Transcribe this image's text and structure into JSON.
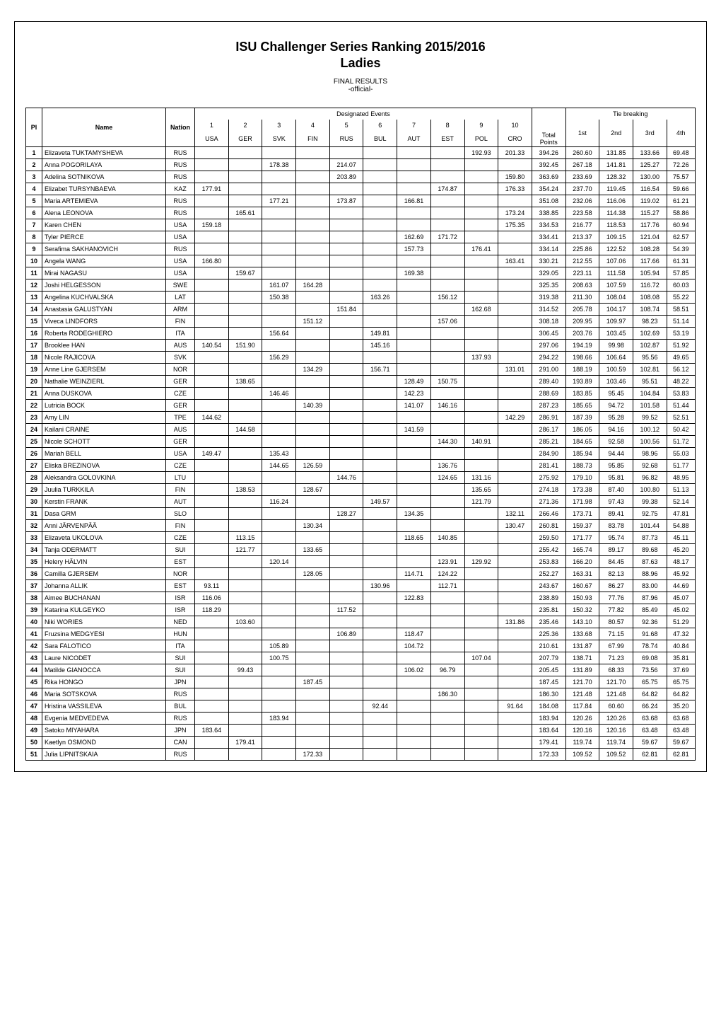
{
  "header": {
    "title": "ISU Challenger Series Ranking 2015/2016",
    "subtitle": "Ladies",
    "final_results": "FINAL RESULTS",
    "official": "-official-"
  },
  "table": {
    "group_designated": "Designated Events",
    "group_tie": "Tie breaking",
    "col_pl": "Pl",
    "col_name": "Name",
    "col_nation": "Nation",
    "events_nums": [
      "1",
      "2",
      "3",
      "4",
      "5",
      "6",
      "7",
      "8",
      "9",
      "10"
    ],
    "events_codes": [
      "USA",
      "GER",
      "SVK",
      "FIN",
      "RUS",
      "BUL",
      "AUT",
      "EST",
      "POL",
      "CRO"
    ],
    "col_total": "Total",
    "col_points": "Points",
    "tie_cols": [
      "1st",
      "2nd",
      "3rd",
      "4th"
    ]
  },
  "rows": [
    {
      "pl": "1",
      "name": "Elizaveta TUKTAMYSHEVA",
      "nation": "RUS",
      "e": [
        "",
        "",
        "",
        "",
        "",
        "",
        "",
        "",
        "192.93",
        "201.33"
      ],
      "total": "394.26",
      "tie": [
        "260.60",
        "131.85",
        "133.66",
        "69.48"
      ]
    },
    {
      "pl": "2",
      "name": "Anna POGORILAYA",
      "nation": "RUS",
      "e": [
        "",
        "",
        "178.38",
        "",
        "214.07",
        "",
        "",
        "",
        "",
        ""
      ],
      "total": "392.45",
      "tie": [
        "267.18",
        "141.81",
        "125.27",
        "72.26"
      ]
    },
    {
      "pl": "3",
      "name": "Adelina SOTNIKOVA",
      "nation": "RUS",
      "e": [
        "",
        "",
        "",
        "",
        "203.89",
        "",
        "",
        "",
        "",
        "159.80"
      ],
      "total": "363.69",
      "tie": [
        "233.69",
        "128.32",
        "130.00",
        "75.57"
      ]
    },
    {
      "pl": "4",
      "name": "Elizabet TURSYNBAEVA",
      "nation": "KAZ",
      "e": [
        "177.91",
        "",
        "",
        "",
        "",
        "",
        "",
        "174.87",
        "",
        "176.33"
      ],
      "total": "354.24",
      "tie": [
        "237.70",
        "119.45",
        "116.54",
        "59.66"
      ]
    },
    {
      "pl": "5",
      "name": "Maria ARTEMIEVA",
      "nation": "RUS",
      "e": [
        "",
        "",
        "177.21",
        "",
        "173.87",
        "",
        "166.81",
        "",
        "",
        ""
      ],
      "total": "351.08",
      "tie": [
        "232.06",
        "116.06",
        "119.02",
        "61.21"
      ]
    },
    {
      "pl": "6",
      "name": "Alena LEONOVA",
      "nation": "RUS",
      "e": [
        "",
        "165.61",
        "",
        "",
        "",
        "",
        "",
        "",
        "",
        "173.24"
      ],
      "total": "338.85",
      "tie": [
        "223.58",
        "114.38",
        "115.27",
        "58.86"
      ]
    },
    {
      "pl": "7",
      "name": "Karen CHEN",
      "nation": "USA",
      "e": [
        "159.18",
        "",
        "",
        "",
        "",
        "",
        "",
        "",
        "",
        "175.35"
      ],
      "total": "334.53",
      "tie": [
        "216.77",
        "118.53",
        "117.76",
        "60.94"
      ]
    },
    {
      "pl": "8",
      "name": "Tyler PIERCE",
      "nation": "USA",
      "e": [
        "",
        "",
        "",
        "",
        "",
        "",
        "162.69",
        "171.72",
        "",
        ""
      ],
      "total": "334.41",
      "tie": [
        "213.37",
        "109.15",
        "121.04",
        "62.57"
      ]
    },
    {
      "pl": "9",
      "name": "Serafima SAKHANOVICH",
      "nation": "RUS",
      "e": [
        "",
        "",
        "",
        "",
        "",
        "",
        "157.73",
        "",
        "176.41",
        ""
      ],
      "total": "334.14",
      "tie": [
        "225.86",
        "122.52",
        "108.28",
        "54.39"
      ]
    },
    {
      "pl": "10",
      "name": "Angela WANG",
      "nation": "USA",
      "e": [
        "166.80",
        "",
        "",
        "",
        "",
        "",
        "",
        "",
        "",
        "163.41"
      ],
      "total": "330.21",
      "tie": [
        "212.55",
        "107.06",
        "117.66",
        "61.31"
      ]
    },
    {
      "pl": "11",
      "name": "Mirai NAGASU",
      "nation": "USA",
      "e": [
        "",
        "159.67",
        "",
        "",
        "",
        "",
        "169.38",
        "",
        "",
        ""
      ],
      "total": "329.05",
      "tie": [
        "223.11",
        "111.58",
        "105.94",
        "57.85"
      ]
    },
    {
      "pl": "12",
      "name": "Joshi HELGESSON",
      "nation": "SWE",
      "e": [
        "",
        "",
        "161.07",
        "164.28",
        "",
        "",
        "",
        "",
        "",
        ""
      ],
      "total": "325.35",
      "tie": [
        "208.63",
        "107.59",
        "116.72",
        "60.03"
      ]
    },
    {
      "pl": "13",
      "name": "Angelina KUCHVALSKA",
      "nation": "LAT",
      "e": [
        "",
        "",
        "150.38",
        "",
        "",
        "163.26",
        "",
        "156.12",
        "",
        ""
      ],
      "total": "319.38",
      "tie": [
        "211.30",
        "108.04",
        "108.08",
        "55.22"
      ]
    },
    {
      "pl": "14",
      "name": "Anastasia GALUSTYAN",
      "nation": "ARM",
      "e": [
        "",
        "",
        "",
        "",
        "151.84",
        "",
        "",
        "",
        "162.68",
        ""
      ],
      "total": "314.52",
      "tie": [
        "205.78",
        "104.17",
        "108.74",
        "58.51"
      ]
    },
    {
      "pl": "15",
      "name": "Viveca LINDFORS",
      "nation": "FIN",
      "e": [
        "",
        "",
        "",
        "151.12",
        "",
        "",
        "",
        "157.06",
        "",
        ""
      ],
      "total": "308.18",
      "tie": [
        "209.95",
        "109.97",
        "98.23",
        "51.14"
      ]
    },
    {
      "pl": "16",
      "name": "Roberta RODEGHIERO",
      "nation": "ITA",
      "e": [
        "",
        "",
        "156.64",
        "",
        "",
        "149.81",
        "",
        "",
        "",
        ""
      ],
      "total": "306.45",
      "tie": [
        "203.76",
        "103.45",
        "102.69",
        "53.19"
      ]
    },
    {
      "pl": "17",
      "name": "Brooklee HAN",
      "nation": "AUS",
      "e": [
        "140.54",
        "151.90",
        "",
        "",
        "",
        "145.16",
        "",
        "",
        "",
        ""
      ],
      "total": "297.06",
      "tie": [
        "194.19",
        "99.98",
        "102.87",
        "51.92"
      ]
    },
    {
      "pl": "18",
      "name": "Nicole RAJICOVA",
      "nation": "SVK",
      "e": [
        "",
        "",
        "156.29",
        "",
        "",
        "",
        "",
        "",
        "137.93",
        ""
      ],
      "total": "294.22",
      "tie": [
        "198.66",
        "106.64",
        "95.56",
        "49.65"
      ]
    },
    {
      "pl": "19",
      "name": "Anne Line GJERSEM",
      "nation": "NOR",
      "e": [
        "",
        "",
        "",
        "134.29",
        "",
        "156.71",
        "",
        "",
        "",
        "131.01"
      ],
      "total": "291.00",
      "tie": [
        "188.19",
        "100.59",
        "102.81",
        "56.12"
      ]
    },
    {
      "pl": "20",
      "name": "Nathalie WEINZIERL",
      "nation": "GER",
      "e": [
        "",
        "138.65",
        "",
        "",
        "",
        "",
        "128.49",
        "150.75",
        "",
        ""
      ],
      "total": "289.40",
      "tie": [
        "193.89",
        "103.46",
        "95.51",
        "48.22"
      ]
    },
    {
      "pl": "21",
      "name": "Anna DUSKOVA",
      "nation": "CZE",
      "e": [
        "",
        "",
        "146.46",
        "",
        "",
        "",
        "142.23",
        "",
        "",
        ""
      ],
      "total": "288.69",
      "tie": [
        "183.85",
        "95.45",
        "104.84",
        "53.83"
      ]
    },
    {
      "pl": "22",
      "name": "Lutricia BOCK",
      "nation": "GER",
      "e": [
        "",
        "",
        "",
        "140.39",
        "",
        "",
        "141.07",
        "146.16",
        "",
        ""
      ],
      "total": "287.23",
      "tie": [
        "185.65",
        "94.72",
        "101.58",
        "51.44"
      ]
    },
    {
      "pl": "23",
      "name": "Amy LIN",
      "nation": "TPE",
      "e": [
        "144.62",
        "",
        "",
        "",
        "",
        "",
        "",
        "",
        "",
        "142.29"
      ],
      "total": "286.91",
      "tie": [
        "187.39",
        "95.28",
        "99.52",
        "52.51"
      ]
    },
    {
      "pl": "24",
      "name": "Kailani CRAINE",
      "nation": "AUS",
      "e": [
        "",
        "144.58",
        "",
        "",
        "",
        "",
        "141.59",
        "",
        "",
        ""
      ],
      "total": "286.17",
      "tie": [
        "186.05",
        "94.16",
        "100.12",
        "50.42"
      ]
    },
    {
      "pl": "25",
      "name": "Nicole SCHOTT",
      "nation": "GER",
      "e": [
        "",
        "",
        "",
        "",
        "",
        "",
        "",
        "144.30",
        "140.91",
        ""
      ],
      "total": "285.21",
      "tie": [
        "184.65",
        "92.58",
        "100.56",
        "51.72"
      ]
    },
    {
      "pl": "26",
      "name": "Mariah BELL",
      "nation": "USA",
      "e": [
        "149.47",
        "",
        "135.43",
        "",
        "",
        "",
        "",
        "",
        "",
        ""
      ],
      "total": "284.90",
      "tie": [
        "185.94",
        "94.44",
        "98.96",
        "55.03"
      ]
    },
    {
      "pl": "27",
      "name": "Eliska BREZINOVA",
      "nation": "CZE",
      "e": [
        "",
        "",
        "144.65",
        "126.59",
        "",
        "",
        "",
        "136.76",
        "",
        ""
      ],
      "total": "281.41",
      "tie": [
        "188.73",
        "95.85",
        "92.68",
        "51.77"
      ]
    },
    {
      "pl": "28",
      "name": "Aleksandra GOLOVKINA",
      "nation": "LTU",
      "e": [
        "",
        "",
        "",
        "",
        "144.76",
        "",
        "",
        "124.65",
        "131.16",
        ""
      ],
      "total": "275.92",
      "tie": [
        "179.10",
        "95.81",
        "96.82",
        "48.95"
      ]
    },
    {
      "pl": "29",
      "name": "Juulia TURKKILA",
      "nation": "FIN",
      "e": [
        "",
        "138.53",
        "",
        "128.67",
        "",
        "",
        "",
        "",
        "135.65",
        ""
      ],
      "total": "274.18",
      "tie": [
        "173.38",
        "87.40",
        "100.80",
        "51.13"
      ]
    },
    {
      "pl": "30",
      "name": "Kerstin FRANK",
      "nation": "AUT",
      "e": [
        "",
        "",
        "116.24",
        "",
        "",
        "149.57",
        "",
        "",
        "121.79",
        ""
      ],
      "total": "271.36",
      "tie": [
        "171.98",
        "97.43",
        "99.38",
        "52.14"
      ]
    },
    {
      "pl": "31",
      "name": "Dasa GRM",
      "nation": "SLO",
      "e": [
        "",
        "",
        "",
        "",
        "128.27",
        "",
        "134.35",
        "",
        "",
        "132.11"
      ],
      "total": "266.46",
      "tie": [
        "173.71",
        "89.41",
        "92.75",
        "47.81"
      ]
    },
    {
      "pl": "32",
      "name": "Anni JÄRVENPÄÄ",
      "nation": "FIN",
      "e": [
        "",
        "",
        "",
        "130.34",
        "",
        "",
        "",
        "",
        "",
        "130.47"
      ],
      "total": "260.81",
      "tie": [
        "159.37",
        "83.78",
        "101.44",
        "54.88"
      ]
    },
    {
      "pl": "33",
      "name": "Elizaveta UKOLOVA",
      "nation": "CZE",
      "e": [
        "",
        "113.15",
        "",
        "",
        "",
        "",
        "118.65",
        "140.85",
        "",
        ""
      ],
      "total": "259.50",
      "tie": [
        "171.77",
        "95.74",
        "87.73",
        "45.11"
      ]
    },
    {
      "pl": "34",
      "name": "Tanja ODERMATT",
      "nation": "SUI",
      "e": [
        "",
        "121.77",
        "",
        "133.65",
        "",
        "",
        "",
        "",
        "",
        ""
      ],
      "total": "255.42",
      "tie": [
        "165.74",
        "89.17",
        "89.68",
        "45.20"
      ]
    },
    {
      "pl": "35",
      "name": "Helery HÄLVIN",
      "nation": "EST",
      "e": [
        "",
        "",
        "120.14",
        "",
        "",
        "",
        "",
        "123.91",
        "129.92",
        ""
      ],
      "total": "253.83",
      "tie": [
        "166.20",
        "84.45",
        "87.63",
        "48.17"
      ]
    },
    {
      "pl": "36",
      "name": "Camilla GJERSEM",
      "nation": "NOR",
      "e": [
        "",
        "",
        "",
        "128.05",
        "",
        "",
        "114.71",
        "124.22",
        "",
        ""
      ],
      "total": "252.27",
      "tie": [
        "163.31",
        "82.13",
        "88.96",
        "45.92"
      ]
    },
    {
      "pl": "37",
      "name": "Johanna ALLIK",
      "nation": "EST",
      "e": [
        "93.11",
        "",
        "",
        "",
        "",
        "130.96",
        "",
        "112.71",
        "",
        ""
      ],
      "total": "243.67",
      "tie": [
        "160.67",
        "86.27",
        "83.00",
        "44.69"
      ]
    },
    {
      "pl": "38",
      "name": "Aimee BUCHANAN",
      "nation": "ISR",
      "e": [
        "116.06",
        "",
        "",
        "",
        "",
        "",
        "122.83",
        "",
        "",
        ""
      ],
      "total": "238.89",
      "tie": [
        "150.93",
        "77.76",
        "87.96",
        "45.07"
      ]
    },
    {
      "pl": "39",
      "name": "Katarina KULGEYKO",
      "nation": "ISR",
      "e": [
        "118.29",
        "",
        "",
        "",
        "117.52",
        "",
        "",
        "",
        "",
        ""
      ],
      "total": "235.81",
      "tie": [
        "150.32",
        "77.82",
        "85.49",
        "45.02"
      ]
    },
    {
      "pl": "40",
      "name": "Niki WORIES",
      "nation": "NED",
      "e": [
        "",
        "103.60",
        "",
        "",
        "",
        "",
        "",
        "",
        "",
        "131.86"
      ],
      "total": "235.46",
      "tie": [
        "143.10",
        "80.57",
        "92.36",
        "51.29"
      ]
    },
    {
      "pl": "41",
      "name": "Fruzsina MEDGYESI",
      "nation": "HUN",
      "e": [
        "",
        "",
        "",
        "",
        "106.89",
        "",
        "118.47",
        "",
        "",
        ""
      ],
      "total": "225.36",
      "tie": [
        "133.68",
        "71.15",
        "91.68",
        "47.32"
      ]
    },
    {
      "pl": "42",
      "name": "Sara FALOTICO",
      "nation": "ITA",
      "e": [
        "",
        "",
        "105.89",
        "",
        "",
        "",
        "104.72",
        "",
        "",
        ""
      ],
      "total": "210.61",
      "tie": [
        "131.87",
        "67.99",
        "78.74",
        "40.84"
      ]
    },
    {
      "pl": "43",
      "name": "Laure NICODET",
      "nation": "SUI",
      "e": [
        "",
        "",
        "100.75",
        "",
        "",
        "",
        "",
        "",
        "107.04",
        ""
      ],
      "total": "207.79",
      "tie": [
        "138.71",
        "71.23",
        "69.08",
        "35.81"
      ]
    },
    {
      "pl": "44",
      "name": "Matilde GIANOCCA",
      "nation": "SUI",
      "e": [
        "",
        "99.43",
        "",
        "",
        "",
        "",
        "106.02",
        "96.79",
        "",
        ""
      ],
      "total": "205.45",
      "tie": [
        "131.89",
        "68.33",
        "73.56",
        "37.69"
      ]
    },
    {
      "pl": "45",
      "name": "Rika HONGO",
      "nation": "JPN",
      "e": [
        "",
        "",
        "",
        "187.45",
        "",
        "",
        "",
        "",
        "",
        ""
      ],
      "total": "187.45",
      "tie": [
        "121.70",
        "121.70",
        "65.75",
        "65.75"
      ]
    },
    {
      "pl": "46",
      "name": "Maria SOTSKOVA",
      "nation": "RUS",
      "e": [
        "",
        "",
        "",
        "",
        "",
        "",
        "",
        "186.30",
        "",
        ""
      ],
      "total": "186.30",
      "tie": [
        "121.48",
        "121.48",
        "64.82",
        "64.82"
      ]
    },
    {
      "pl": "47",
      "name": "Hristina VASSILEVA",
      "nation": "BUL",
      "e": [
        "",
        "",
        "",
        "",
        "",
        "92.44",
        "",
        "",
        "",
        "91.64"
      ],
      "total": "184.08",
      "tie": [
        "117.84",
        "60.60",
        "66.24",
        "35.20"
      ]
    },
    {
      "pl": "48",
      "name": "Evgenia MEDVEDEVA",
      "nation": "RUS",
      "e": [
        "",
        "",
        "183.94",
        "",
        "",
        "",
        "",
        "",
        "",
        ""
      ],
      "total": "183.94",
      "tie": [
        "120.26",
        "120.26",
        "63.68",
        "63.68"
      ]
    },
    {
      "pl": "49",
      "name": "Satoko MIYAHARA",
      "nation": "JPN",
      "e": [
        "183.64",
        "",
        "",
        "",
        "",
        "",
        "",
        "",
        "",
        ""
      ],
      "total": "183.64",
      "tie": [
        "120.16",
        "120.16",
        "63.48",
        "63.48"
      ]
    },
    {
      "pl": "50",
      "name": "Kaetlyn OSMOND",
      "nation": "CAN",
      "e": [
        "",
        "179.41",
        "",
        "",
        "",
        "",
        "",
        "",
        "",
        ""
      ],
      "total": "179.41",
      "tie": [
        "119.74",
        "119.74",
        "59.67",
        "59.67"
      ]
    },
    {
      "pl": "51",
      "name": "Julia LIPNITSKAIA",
      "nation": "RUS",
      "e": [
        "",
        "",
        "",
        "172.33",
        "",
        "",
        "",
        "",
        "",
        ""
      ],
      "total": "172.33",
      "tie": [
        "109.52",
        "109.52",
        "62.81",
        "62.81"
      ]
    }
  ]
}
